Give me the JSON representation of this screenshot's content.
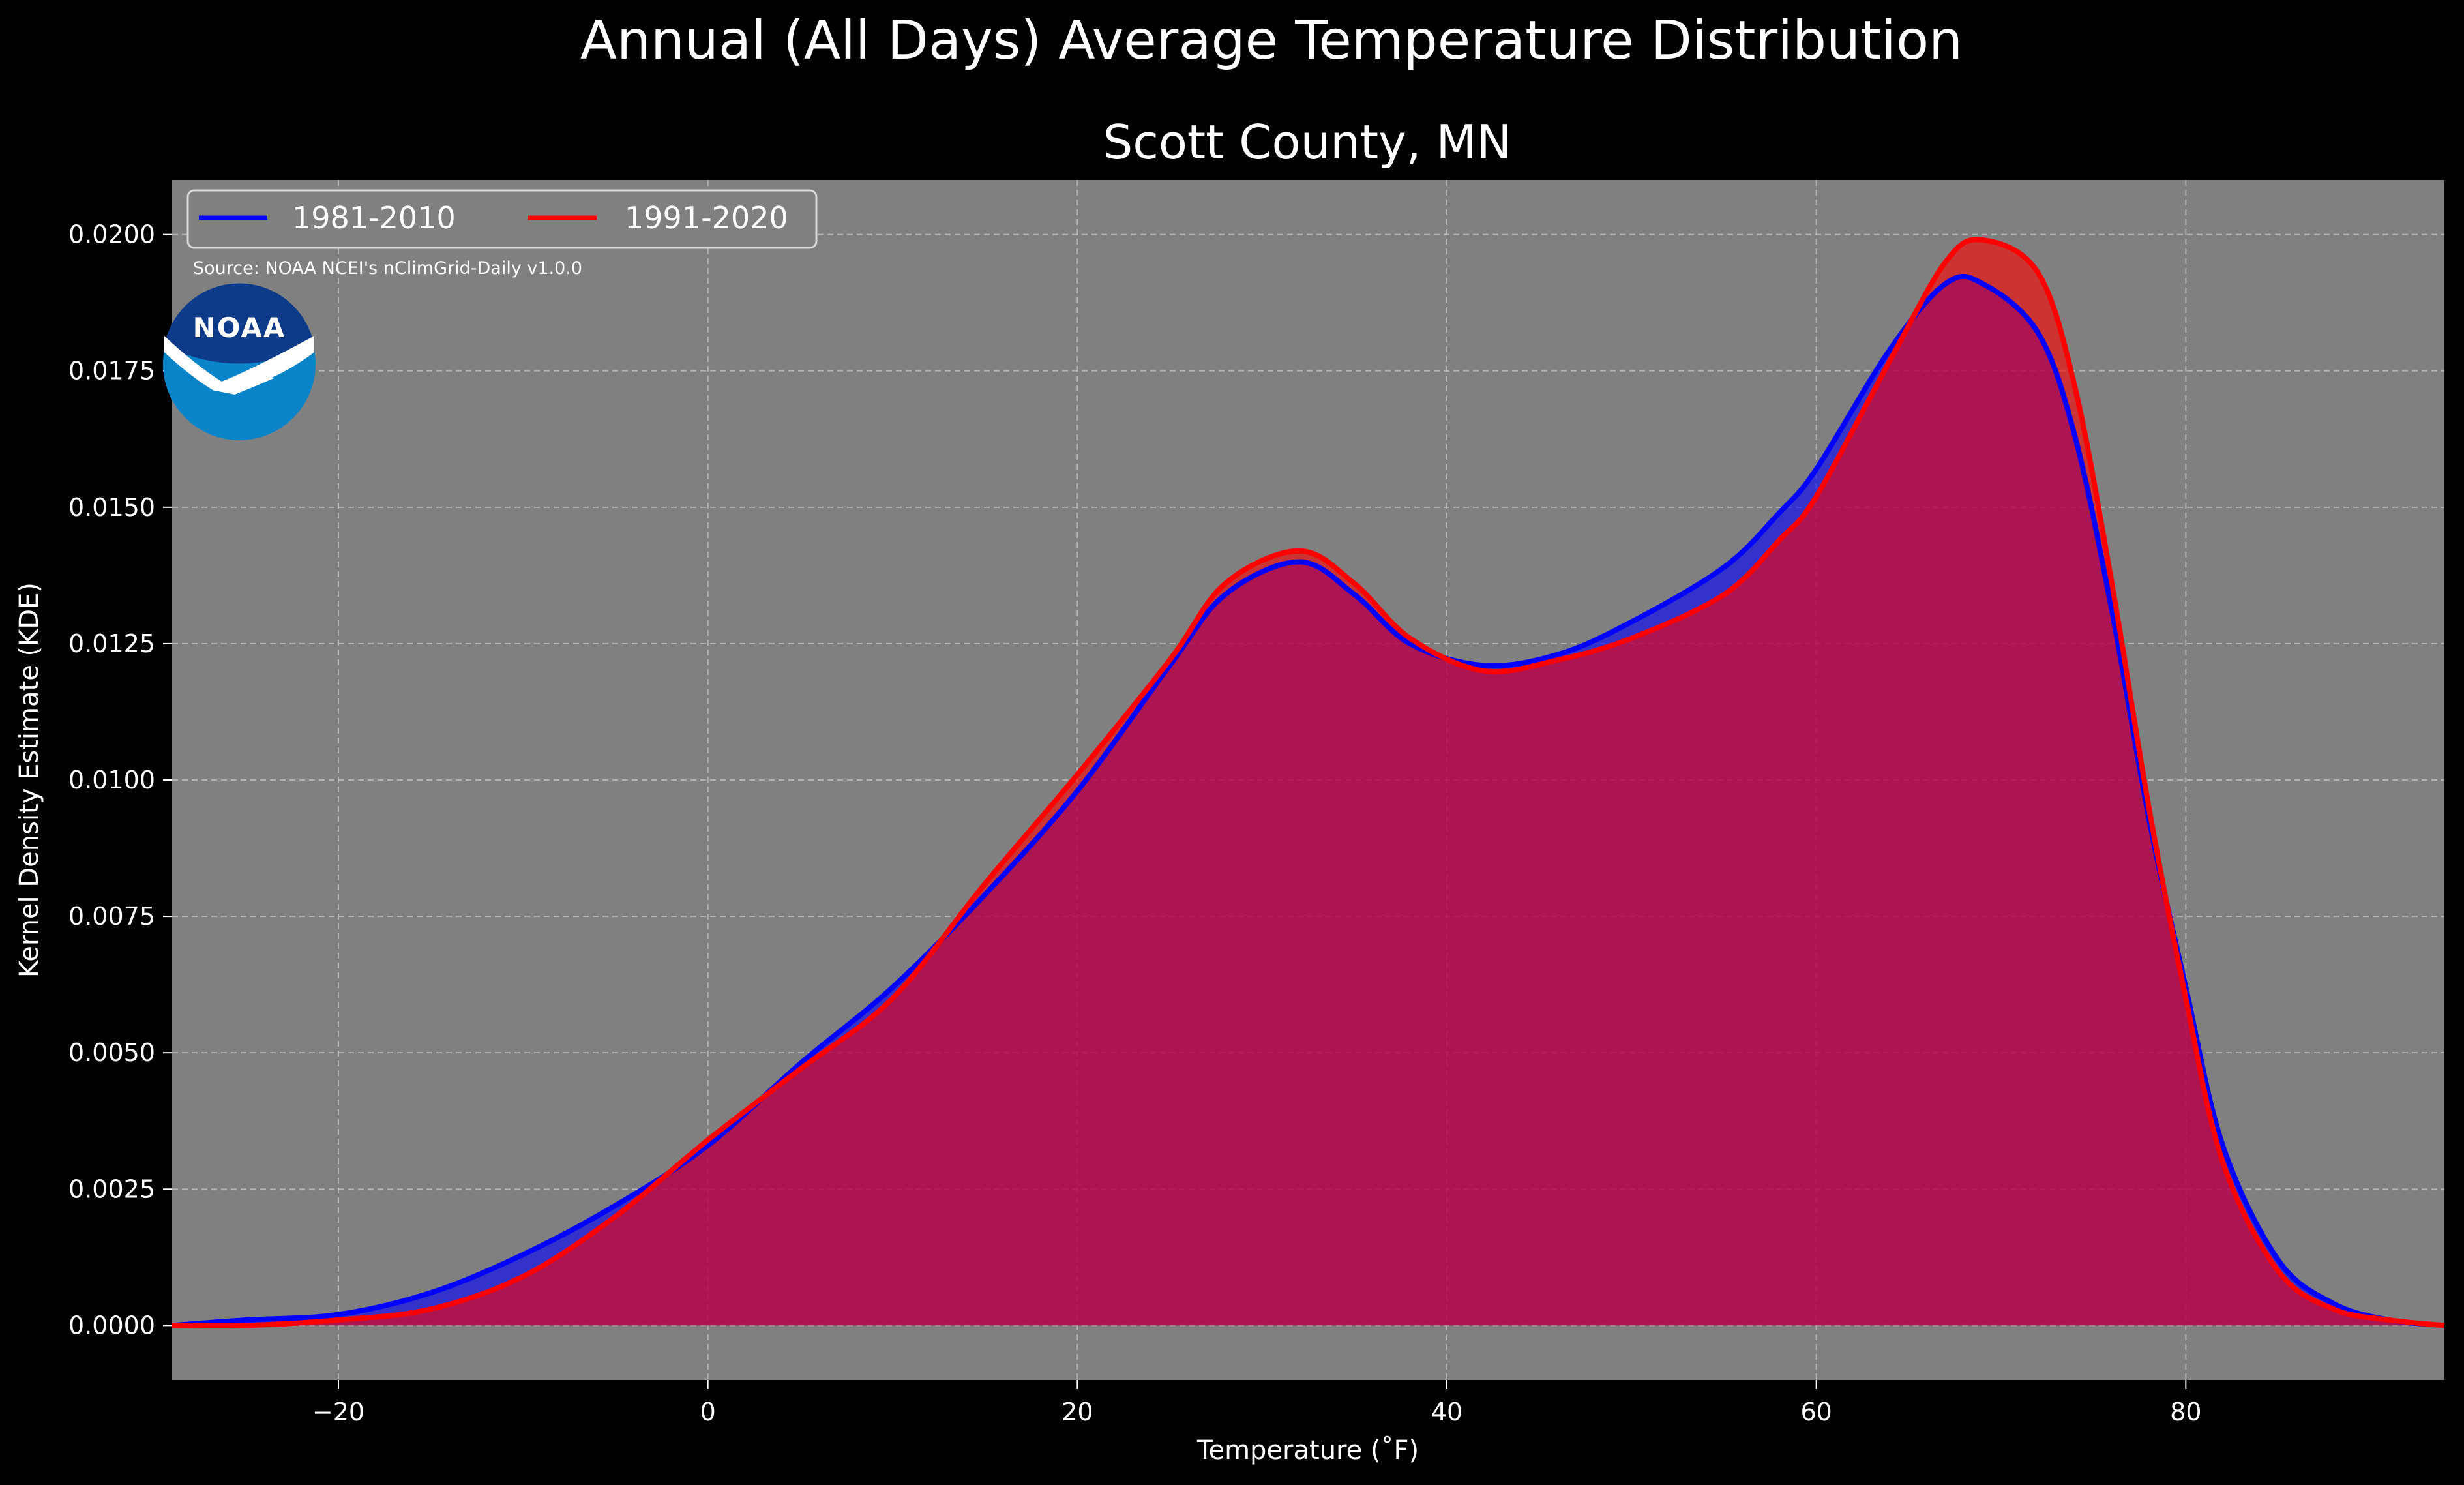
{
  "chart_data": {
    "type": "area",
    "title": "Annual (All Days) Average Temperature Distribution",
    "subtitle": "Scott County, MN",
    "xlabel": "Temperature (˚F)",
    "ylabel": "Kernel Density Estimate (KDE)",
    "xlim": [
      -29,
      94
    ],
    "ylim": [
      -0.001,
      0.021
    ],
    "x_ticks": [
      -20,
      0,
      20,
      40,
      60,
      80
    ],
    "x_tick_labels": [
      "−20",
      "0",
      "20",
      "40",
      "60",
      "80"
    ],
    "y_ticks": [
      0,
      0.0025,
      0.005,
      0.0075,
      0.01,
      0.0125,
      0.015,
      0.0175,
      0.02
    ],
    "y_tick_labels": [
      "0.0000",
      "0.0025",
      "0.0050",
      "0.0075",
      "0.0100",
      "0.0125",
      "0.0150",
      "0.0175",
      "0.0200"
    ],
    "grid": true,
    "legend_position": "top-left",
    "source_note": "Source: NOAA NCEI's nClimGrid-Daily v1.0.0",
    "logo_text": "NOAA",
    "background": "#808080",
    "series": [
      {
        "name": "1981-2010",
        "color": "#0000ff",
        "x": [
          -29,
          -25,
          -20,
          -15,
          -10,
          -5,
          0,
          5,
          10,
          15,
          20,
          25,
          28,
          32,
          35,
          38,
          42,
          46,
          50,
          55,
          58,
          60,
          64,
          67,
          69,
          72,
          74,
          76,
          78,
          80,
          82,
          85,
          88,
          91,
          94
        ],
        "y": [
          0.0,
          0.0001,
          0.0002,
          0.0006,
          0.0013,
          0.0022,
          0.0033,
          0.0048,
          0.0062,
          0.0079,
          0.0098,
          0.0121,
          0.0134,
          0.014,
          0.0134,
          0.0125,
          0.0121,
          0.0123,
          0.0129,
          0.0139,
          0.0149,
          0.0157,
          0.0179,
          0.0191,
          0.0191,
          0.0182,
          0.0163,
          0.0131,
          0.0093,
          0.0062,
          0.0033,
          0.0012,
          0.0004,
          0.0001,
          0.0
        ]
      },
      {
        "name": "1991-2020",
        "color": "#ff0000",
        "x": [
          -29,
          -25,
          -20,
          -15,
          -10,
          -5,
          0,
          5,
          10,
          15,
          20,
          25,
          28,
          32,
          35,
          38,
          42,
          46,
          50,
          55,
          58,
          60,
          64,
          67,
          69,
          72,
          74,
          76,
          78,
          80,
          82,
          85,
          88,
          91,
          94
        ],
        "y": [
          0.0,
          0.0,
          0.0001,
          0.0003,
          0.0009,
          0.002,
          0.0034,
          0.0047,
          0.006,
          0.0081,
          0.0101,
          0.0122,
          0.0136,
          0.0142,
          0.0136,
          0.0126,
          0.012,
          0.0122,
          0.0126,
          0.0134,
          0.0144,
          0.0152,
          0.0177,
          0.0195,
          0.0199,
          0.0193,
          0.0172,
          0.0136,
          0.0095,
          0.006,
          0.003,
          0.001,
          0.0003,
          0.0001,
          0.0
        ]
      }
    ]
  }
}
